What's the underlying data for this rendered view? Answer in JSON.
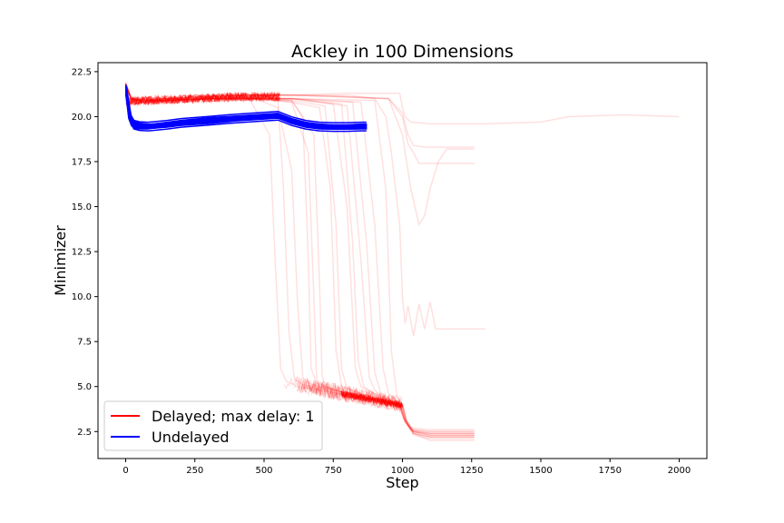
{
  "chart_data": {
    "type": "line",
    "title": "Ackley in 100 Dimensions",
    "xlabel": "Step",
    "ylabel": "Minimizer",
    "xlim": [
      -100,
      2100
    ],
    "ylim": [
      1.0,
      23.0
    ],
    "x_ticks": [
      0,
      250,
      500,
      750,
      1000,
      1250,
      1500,
      1750,
      2000
    ],
    "y_ticks": [
      2.5,
      5.0,
      7.5,
      10.0,
      12.5,
      15.0,
      17.5,
      20.0,
      22.5
    ],
    "x_tick_labels": [
      "0",
      "250",
      "500",
      "750",
      "1000",
      "1250",
      "1500",
      "1750",
      "2000"
    ],
    "y_tick_labels": [
      "2.5",
      "5.0",
      "7.5",
      "10.0",
      "12.5",
      "15.0",
      "17.5",
      "20.0",
      "22.5"
    ],
    "grid": false,
    "legend_position": "lower-left",
    "legend": [
      {
        "label": "Delayed; max delay: 1",
        "color": "#ff0000"
      },
      {
        "label": "Undelayed",
        "color": "#0000ff"
      }
    ],
    "series": [
      {
        "name": "Delayed; max delay: 1",
        "color": "#ff0000",
        "opacity": 0.12,
        "runs": [
          {
            "x": [
              0,
              20,
              60,
              150,
              300,
              450,
              550,
              600,
              620,
              640,
              660,
              700,
              800,
              900,
              990,
              1005,
              1030,
              1100,
              1200,
              1260
            ],
            "y": [
              21.8,
              21.0,
              20.8,
              20.9,
              21.0,
              21.1,
              20.5,
              17.0,
              10.0,
              5.5,
              5.2,
              5.0,
              4.6,
              4.2,
              4.0,
              3.3,
              2.6,
              2.5,
              2.5,
              2.5
            ]
          },
          {
            "x": [
              0,
              20,
              60,
              150,
              300,
              450,
              520,
              540,
              560,
              580,
              620,
              700,
              800,
              900,
              990,
              1005,
              1030,
              1100,
              1200,
              1260
            ],
            "y": [
              21.7,
              21.0,
              20.8,
              20.9,
              21.0,
              20.9,
              19.0,
              12.0,
              6.0,
              5.3,
              5.0,
              4.8,
              4.5,
              4.2,
              3.9,
              3.2,
              2.6,
              2.4,
              2.4,
              2.4
            ]
          },
          {
            "x": [
              0,
              20,
              60,
              150,
              300,
              450,
              600,
              660,
              680,
              690,
              700,
              760,
              850,
              950,
              995,
              1010,
              1040,
              1100,
              1200,
              1260
            ],
            "y": [
              21.9,
              21.0,
              20.9,
              20.9,
              21.0,
              21.0,
              20.8,
              18.0,
              10.0,
              5.5,
              5.0,
              4.8,
              4.4,
              4.1,
              3.9,
              3.0,
              2.5,
              2.3,
              2.3,
              2.3
            ]
          },
          {
            "x": [
              0,
              20,
              60,
              150,
              300,
              450,
              600,
              680,
              700,
              710,
              720,
              800,
              900,
              990,
              1010,
              1040,
              1100,
              1200,
              1260
            ],
            "y": [
              21.6,
              20.9,
              20.8,
              20.9,
              21.0,
              21.0,
              20.9,
              19.0,
              11.0,
              5.6,
              5.0,
              4.6,
              4.2,
              4.0,
              3.1,
              2.4,
              2.2,
              2.2,
              2.2
            ]
          },
          {
            "x": [
              0,
              20,
              60,
              150,
              300,
              450,
              600,
              700,
              740,
              760,
              780,
              850,
              950,
              1000,
              1015,
              1040,
              1100,
              1200,
              1260
            ],
            "y": [
              21.8,
              21.1,
              20.9,
              20.9,
              21.0,
              21.1,
              20.8,
              20.5,
              16.0,
              7.0,
              5.0,
              4.6,
              4.2,
              3.9,
              3.0,
              2.3,
              2.1,
              2.1,
              2.1
            ]
          },
          {
            "x": [
              0,
              20,
              60,
              150,
              300,
              450,
              600,
              750,
              800,
              830,
              850,
              900,
              960,
              1000,
              1015,
              1040,
              1100,
              1200,
              1260
            ],
            "y": [
              21.7,
              21.0,
              20.8,
              20.9,
              21.0,
              21.0,
              21.0,
              20.7,
              15.0,
              6.0,
              5.0,
              4.6,
              4.2,
              4.0,
              3.0,
              2.4,
              2.0,
              2.0,
              2.0
            ]
          },
          {
            "x": [
              0,
              20,
              60,
              150,
              300,
              450,
              600,
              800,
              850,
              880,
              900,
              940,
              990,
              1010,
              1040,
              1100,
              1200,
              1260
            ],
            "y": [
              21.8,
              21.0,
              20.9,
              20.9,
              21.0,
              21.0,
              21.0,
              20.6,
              12.0,
              5.5,
              4.8,
              4.3,
              4.0,
              3.0,
              2.4,
              2.2,
              2.2,
              2.2
            ]
          },
          {
            "x": [
              0,
              20,
              60,
              150,
              300,
              450,
              600,
              850,
              900,
              930,
              950,
              980,
              1000,
              1015,
              1040,
              1100,
              1200,
              1260
            ],
            "y": [
              21.9,
              21.0,
              20.9,
              20.9,
              21.0,
              21.0,
              21.0,
              20.8,
              14.0,
              6.0,
              4.6,
              4.2,
              4.0,
              3.1,
              2.5,
              2.4,
              2.4,
              2.4
            ]
          },
          {
            "x": [
              0,
              20,
              60,
              150,
              300,
              450,
              600,
              900,
              940,
              960,
              980,
              995,
              1010,
              1040,
              1100,
              1200,
              1260
            ],
            "y": [
              21.7,
              21.0,
              20.8,
              20.9,
              21.0,
              21.0,
              21.0,
              20.9,
              16.0,
              7.0,
              4.5,
              4.0,
              3.2,
              2.6,
              2.5,
              2.5,
              2.5
            ]
          },
          {
            "x": [
              0,
              20,
              60,
              150,
              300,
              450,
              550,
              570,
              590,
              610,
              640,
              700,
              800,
              900,
              990,
              1005,
              1030,
              1100,
              1200,
              1260
            ],
            "y": [
              21.6,
              21.0,
              20.8,
              20.9,
              21.0,
              21.0,
              20.9,
              16.0,
              8.0,
              5.4,
              5.1,
              4.9,
              4.5,
              4.2,
              4.0,
              3.2,
              2.7,
              2.6,
              2.6,
              2.6
            ]
          },
          {
            "x": [
              0,
              20,
              60,
              150,
              300,
              450,
              600,
              640,
              660,
              670,
              690,
              760,
              850,
              950,
              995,
              1010,
              1040,
              1100,
              1200,
              1260
            ],
            "y": [
              21.8,
              21.0,
              20.9,
              20.9,
              21.0,
              21.1,
              20.9,
              20.0,
              12.0,
              6.0,
              5.2,
              4.8,
              4.4,
              4.1,
              3.9,
              3.1,
              2.5,
              2.3,
              2.3,
              2.3
            ]
          },
          {
            "x": [
              0,
              20,
              60,
              150,
              300,
              450,
              600,
              720,
              760,
              780,
              800,
              860,
              950,
              1000,
              1015,
              1040,
              1100,
              1200,
              1260
            ],
            "y": [
              21.7,
              21.0,
              20.8,
              20.9,
              21.0,
              21.0,
              20.9,
              20.6,
              14.0,
              6.0,
              4.9,
              4.5,
              4.1,
              3.9,
              3.0,
              2.4,
              2.2,
              2.2,
              2.2
            ]
          },
          {
            "x": [
              0,
              20,
              60,
              150,
              300,
              450,
              600,
              780,
              820,
              840,
              860,
              920,
              980,
              1010,
              1040,
              1100,
              1200,
              1260
            ],
            "y": [
              21.8,
              21.0,
              20.9,
              20.9,
              21.0,
              21.0,
              21.0,
              20.7,
              13.0,
              6.5,
              5.0,
              4.4,
              4.0,
              3.1,
              2.5,
              2.3,
              2.3,
              2.3
            ]
          },
          {
            "x": [
              0,
              20,
              60,
              150,
              300,
              450,
              600,
              820,
              870,
              900,
              920,
              960,
              1000,
              1015,
              1040,
              1100,
              1200,
              1260
            ],
            "y": [
              21.9,
              21.0,
              20.9,
              20.9,
              21.0,
              21.0,
              21.0,
              20.8,
              13.0,
              5.8,
              4.7,
              4.2,
              4.0,
              3.1,
              2.5,
              2.4,
              2.4,
              2.4
            ]
          },
          {
            "x": [
              0,
              20,
              60,
              150,
              300,
              450,
              600,
              800,
              900,
              990,
              1000,
              1010,
              1030,
              1100,
              1300,
              1500,
              1600,
              1800,
              2000
            ],
            "y": [
              21.8,
              21.0,
              20.9,
              21.0,
              21.1,
              21.2,
              21.2,
              21.3,
              21.3,
              21.3,
              20.5,
              20.0,
              19.7,
              19.6,
              19.6,
              19.7,
              20.0,
              20.1,
              20.0
            ]
          },
          {
            "x": [
              0,
              20,
              60,
              150,
              300,
              450,
              600,
              800,
              900,
              940,
              960,
              990,
              1000,
              1010,
              1020,
              1040,
              1060,
              1080,
              1100,
              1120,
              1200,
              1300
            ],
            "y": [
              21.8,
              21.0,
              20.9,
              21.0,
              21.1,
              21.2,
              21.2,
              21.2,
              21.0,
              20.0,
              18.0,
              14.0,
              10.0,
              8.5,
              9.5,
              7.8,
              9.6,
              8.2,
              9.7,
              8.2,
              8.2,
              8.2
            ]
          },
          {
            "x": [
              0,
              20,
              60,
              150,
              300,
              450,
              600,
              800,
              950,
              1000,
              1030,
              1060,
              1080,
              1100,
              1130,
              1160,
              1200,
              1260
            ],
            "y": [
              21.7,
              21.0,
              20.9,
              21.0,
              21.1,
              21.2,
              21.2,
              21.1,
              21.0,
              19.0,
              16.0,
              14.0,
              14.5,
              16.0,
              17.5,
              18.2,
              18.2,
              18.2
            ]
          },
          {
            "x": [
              0,
              20,
              60,
              150,
              300,
              450,
              600,
              800,
              950,
              1000,
              1020,
              1040,
              1060,
              1100,
              1200,
              1260
            ],
            "y": [
              21.8,
              21.0,
              20.9,
              21.0,
              21.1,
              21.2,
              21.2,
              21.1,
              21.0,
              20.0,
              18.5,
              18.0,
              17.4,
              17.4,
              17.4,
              17.4
            ]
          },
          {
            "x": [
              0,
              20,
              60,
              150,
              300,
              450,
              600,
              800,
              950,
              1000,
              1020,
              1040,
              1080,
              1150,
              1200,
              1260
            ],
            "y": [
              21.8,
              21.0,
              20.9,
              21.0,
              21.1,
              21.2,
              21.2,
              21.1,
              21.0,
              20.2,
              19.0,
              18.4,
              18.3,
              18.3,
              18.3,
              18.3
            ]
          }
        ]
      },
      {
        "name": "Undelayed",
        "color": "#0000ff",
        "opacity": 1.0,
        "band": {
          "x": [
            0,
            5,
            10,
            20,
            30,
            50,
            80,
            100,
            150,
            200,
            300,
            400,
            500,
            550,
            600,
            650,
            700,
            750,
            800,
            850,
            870
          ],
          "lo": [
            21.2,
            20.6,
            19.9,
            19.5,
            19.35,
            19.3,
            19.3,
            19.35,
            19.4,
            19.5,
            19.6,
            19.75,
            19.85,
            19.9,
            19.6,
            19.4,
            19.3,
            19.3,
            19.3,
            19.3,
            19.3
          ],
          "hi": [
            21.8,
            21.6,
            21.0,
            20.1,
            19.75,
            19.65,
            19.6,
            19.6,
            19.7,
            19.8,
            19.95,
            20.05,
            20.15,
            20.2,
            19.9,
            19.7,
            19.6,
            19.55,
            19.55,
            19.6,
            19.6
          ]
        }
      }
    ]
  }
}
